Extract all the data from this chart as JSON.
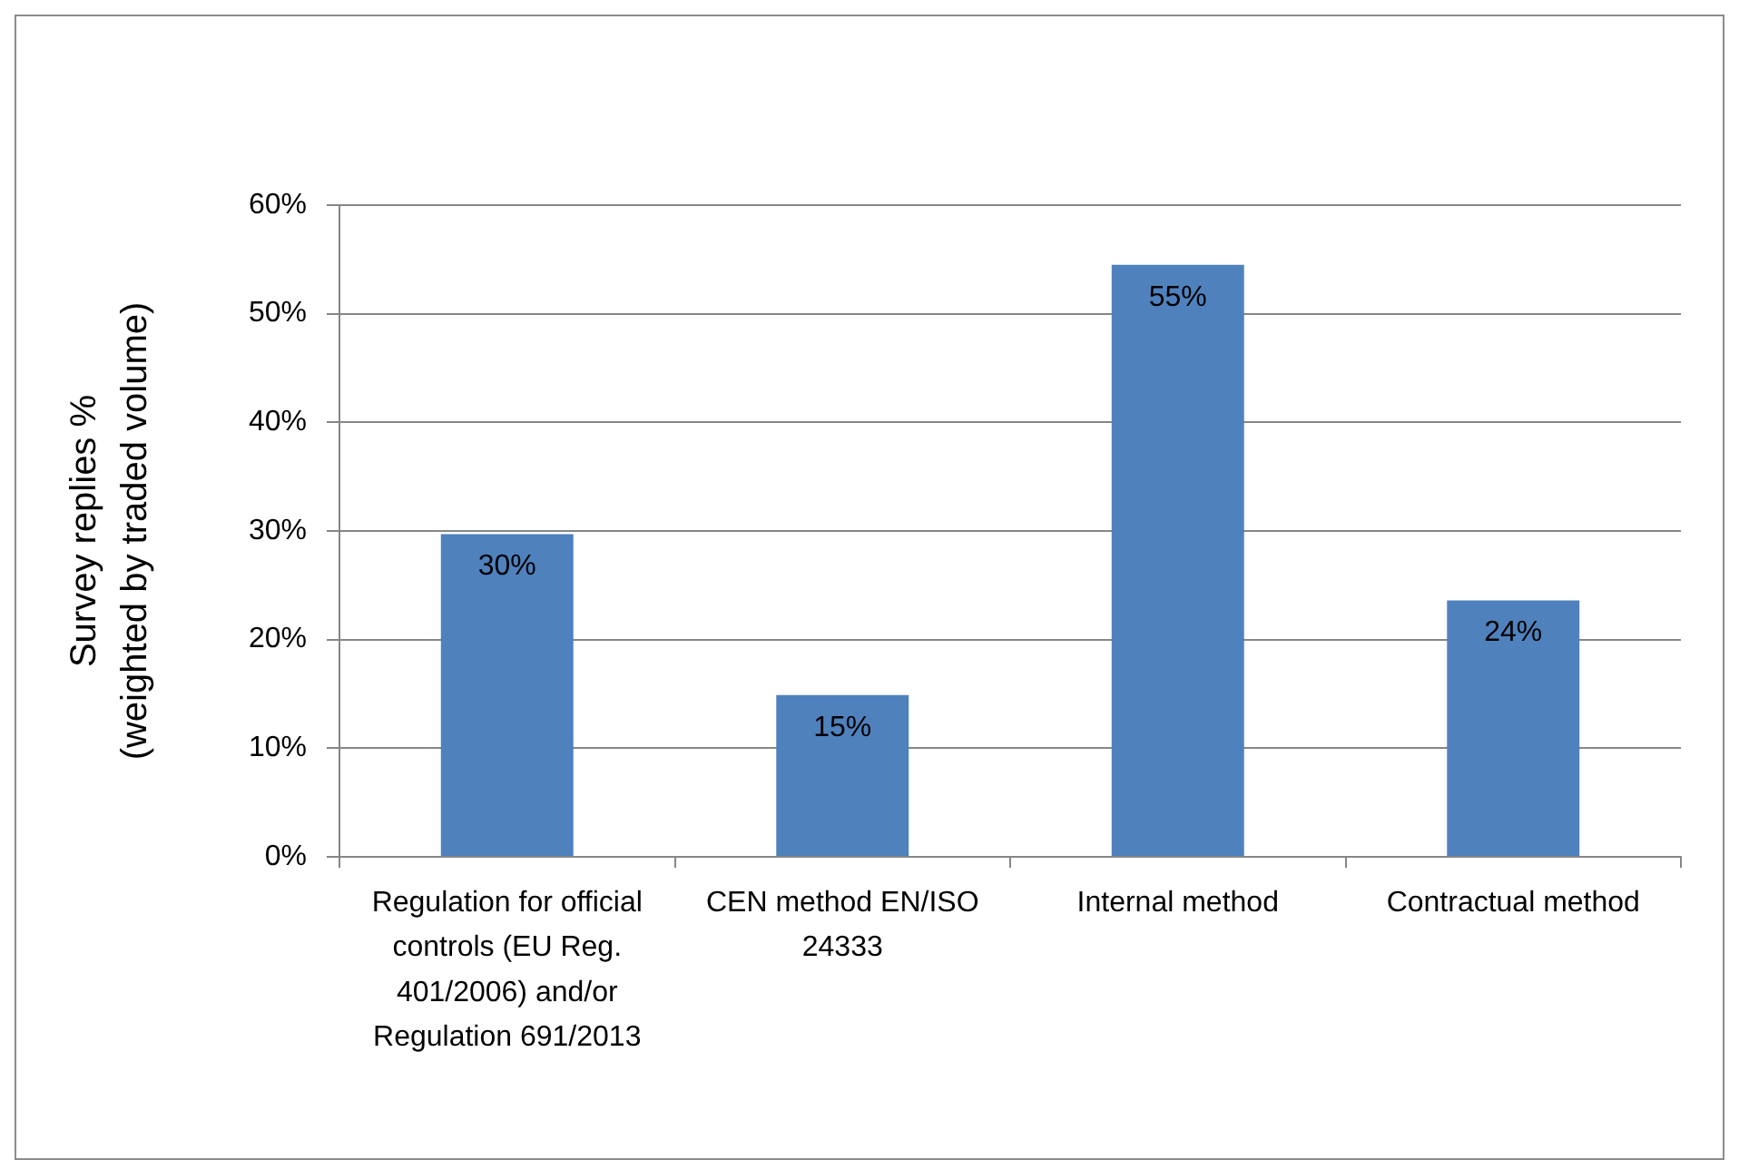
{
  "chart_data": {
    "type": "bar",
    "categories": [
      "Regulation for official controls (EU Reg. 401/2006) and/or Regulation 691/2013",
      "CEN method EN/ISO 24333",
      "Internal method",
      "Contractual method"
    ],
    "values": [
      29.7,
      14.9,
      54.5,
      23.6
    ],
    "value_labels": [
      "30%",
      "15%",
      "55%",
      "24%"
    ],
    "color": "#4f81bd",
    "ylabel": "Survey replies %\n(weighted by traded volume)",
    "ylim": [
      0,
      60
    ],
    "yticks": [
      {
        "value": 0,
        "label": "0%"
      },
      {
        "value": 10,
        "label": "10%"
      },
      {
        "value": 20,
        "label": "20%"
      },
      {
        "value": 30,
        "label": "30%"
      },
      {
        "value": 40,
        "label": "40%"
      },
      {
        "value": 50,
        "label": "50%"
      },
      {
        "value": 60,
        "label": "60%"
      }
    ],
    "grid": "y"
  }
}
